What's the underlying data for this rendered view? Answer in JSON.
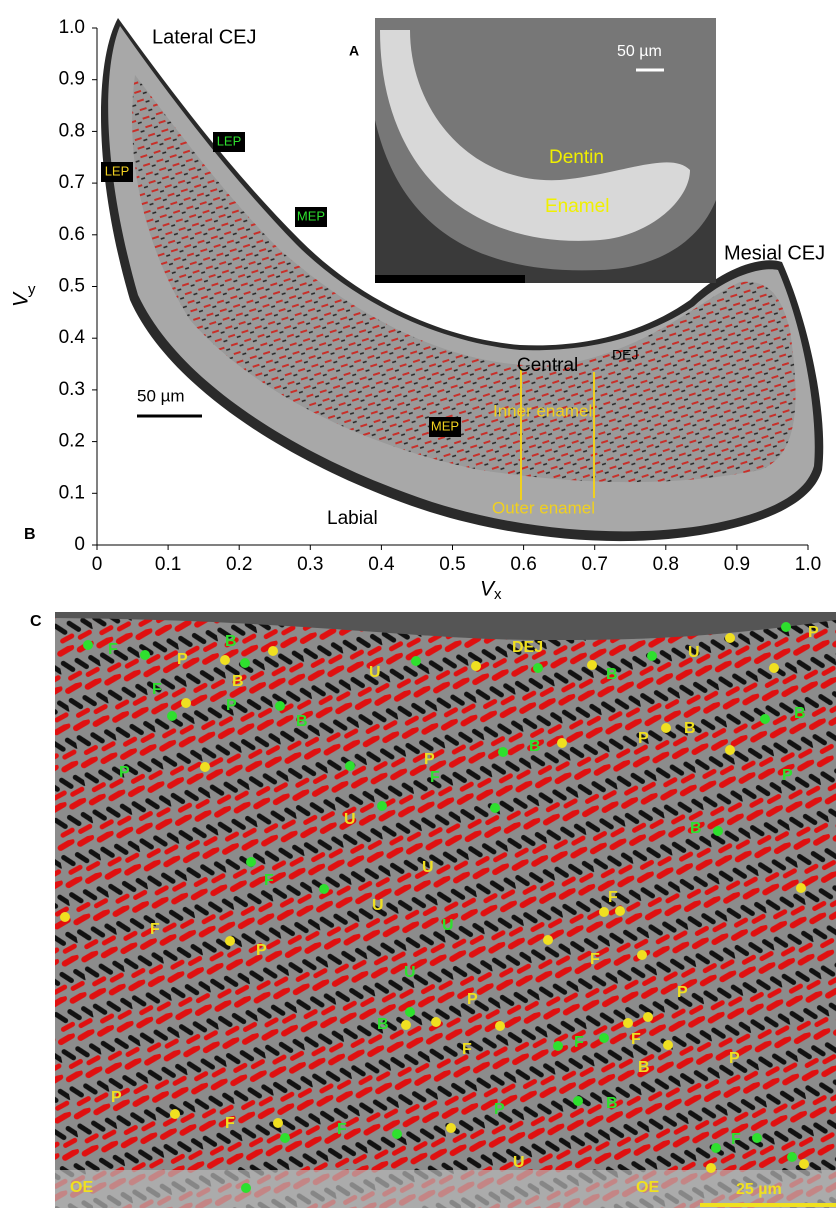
{
  "panel_a": {
    "label": "A",
    "scale_bar": "50 µm",
    "dentin": "Dentin",
    "enamel": "Enamel"
  },
  "panel_b": {
    "label": "B",
    "xlim": [
      0,
      1
    ],
    "ylim": [
      0,
      1
    ],
    "x_axis": {
      "symbol": "V",
      "subscript": "x",
      "ticks": [
        0,
        0.1,
        0.2,
        0.3,
        0.4,
        0.5,
        0.6,
        0.7,
        0.8,
        0.9,
        {
          "value": 1,
          "label": "1.0"
        }
      ]
    },
    "y_axis": {
      "symbol": "V",
      "subscript": "y",
      "ticks": [
        0,
        0.1,
        0.2,
        0.3,
        0.4,
        0.5,
        0.6,
        0.7,
        0.8,
        0.9,
        {
          "value": 1,
          "label": "1.0"
        }
      ]
    },
    "annotations": [
      "Lateral CEJ",
      "Mesial CEJ",
      "LEP",
      "LEP",
      "MEP",
      "MEP",
      "Central",
      "DEJ",
      "Inner enamel",
      "Outer enamel",
      "50 µm",
      "Labial"
    ]
  },
  "panel_c": {
    "label": "C",
    "scale_bar": "25 µm",
    "annotations": [
      "F",
      "B",
      "P",
      "B",
      "P",
      "F",
      "B",
      "F",
      "U",
      "U",
      "B",
      "F",
      "B",
      "F",
      "P",
      "F",
      "B",
      "B",
      "B",
      "P",
      "F",
      "P",
      "B",
      "U",
      "DEJ",
      "U",
      "P",
      "P",
      "B",
      "P",
      "U",
      "U",
      "U",
      "F",
      "F",
      "P",
      "F",
      "P",
      "P",
      "F",
      "F",
      "P",
      "B",
      "P",
      "F",
      "U",
      "OE",
      "OE"
    ]
  }
}
